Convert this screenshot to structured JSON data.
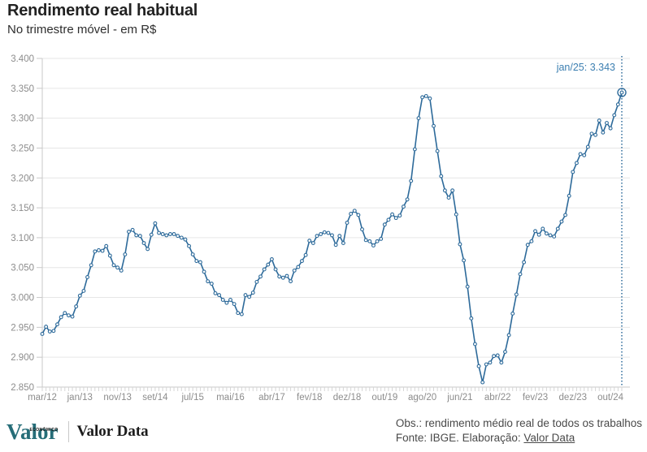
{
  "header": {
    "title": "Rendimento real habitual",
    "subtitle": "No trimestre móvel - em R$"
  },
  "chart_data": {
    "type": "line",
    "title": "Rendimento real habitual",
    "subtitle": "No trimestre móvel - em R$",
    "frequency": "monthly",
    "x_start": "mar/12",
    "x_end": "jan/25",
    "ylim": [
      2.85,
      3.4
    ],
    "grid": "horizontal-only",
    "y_ticks": [
      {
        "value": 2.85,
        "label": "2.850"
      },
      {
        "value": 2.9,
        "label": "2.900"
      },
      {
        "value": 2.95,
        "label": "2.950"
      },
      {
        "value": 3.0,
        "label": "3.000"
      },
      {
        "value": 3.05,
        "label": "3.050"
      },
      {
        "value": 3.1,
        "label": "3.100"
      },
      {
        "value": 3.15,
        "label": "3.150"
      },
      {
        "value": 3.2,
        "label": "3.200"
      },
      {
        "value": 3.25,
        "label": "3.250"
      },
      {
        "value": 3.3,
        "label": "3.300"
      },
      {
        "value": 3.35,
        "label": "3.350"
      },
      {
        "value": 3.4,
        "label": "3.400"
      }
    ],
    "x_ticks": [
      {
        "index": 0,
        "label": "mar/12"
      },
      {
        "index": 10,
        "label": "jan/13"
      },
      {
        "index": 20,
        "label": "nov/13"
      },
      {
        "index": 30,
        "label": "set/14"
      },
      {
        "index": 40,
        "label": "jul/15"
      },
      {
        "index": 50,
        "label": "mai/16"
      },
      {
        "index": 61,
        "label": "abr/17"
      },
      {
        "index": 71,
        "label": "fev/18"
      },
      {
        "index": 81,
        "label": "dez/18"
      },
      {
        "index": 91,
        "label": "out/19"
      },
      {
        "index": 101,
        "label": "ago/20"
      },
      {
        "index": 111,
        "label": "jun/21"
      },
      {
        "index": 121,
        "label": "abr/22"
      },
      {
        "index": 131,
        "label": "fev/23"
      },
      {
        "index": 141,
        "label": "dez/23"
      },
      {
        "index": 151,
        "label": "out/24"
      }
    ],
    "values": [
      2.939,
      2.951,
      2.943,
      2.944,
      2.955,
      2.967,
      2.974,
      2.97,
      2.968,
      2.985,
      3.003,
      3.011,
      3.034,
      3.054,
      3.077,
      3.079,
      3.078,
      3.086,
      3.07,
      3.054,
      3.05,
      3.045,
      3.072,
      3.11,
      3.113,
      3.104,
      3.103,
      3.091,
      3.081,
      3.105,
      3.124,
      3.108,
      3.106,
      3.104,
      3.106,
      3.106,
      3.103,
      3.1,
      3.097,
      3.086,
      3.072,
      3.061,
      3.059,
      3.043,
      3.027,
      3.023,
      3.007,
      3.004,
      2.996,
      2.991,
      2.996,
      2.989,
      2.974,
      2.972,
      3.004,
      3.001,
      3.008,
      3.026,
      3.035,
      3.047,
      3.055,
      3.064,
      3.047,
      3.035,
      3.033,
      3.036,
      3.027,
      3.045,
      3.051,
      3.061,
      3.071,
      3.095,
      3.091,
      3.103,
      3.106,
      3.109,
      3.108,
      3.104,
      3.088,
      3.103,
      3.091,
      3.125,
      3.14,
      3.145,
      3.138,
      3.114,
      3.096,
      3.094,
      3.087,
      3.094,
      3.098,
      3.122,
      3.13,
      3.139,
      3.133,
      3.137,
      3.152,
      3.164,
      3.195,
      3.248,
      3.3,
      3.335,
      3.337,
      3.333,
      3.287,
      3.245,
      3.203,
      3.179,
      3.167,
      3.179,
      3.139,
      3.089,
      3.062,
      3.018,
      2.965,
      2.922,
      2.885,
      2.858,
      2.888,
      2.891,
      2.902,
      2.903,
      2.891,
      2.909,
      2.937,
      2.973,
      3.005,
      3.039,
      3.059,
      3.088,
      3.094,
      3.111,
      3.105,
      3.115,
      3.107,
      3.104,
      3.102,
      3.115,
      3.127,
      3.138,
      3.17,
      3.21,
      3.225,
      3.24,
      3.238,
      3.252,
      3.274,
      3.272,
      3.296,
      3.276,
      3.292,
      3.283,
      3.305,
      3.323,
      3.343
    ],
    "annotation": {
      "text": "jan/25: 3.343",
      "index": 154,
      "value": 3.343
    },
    "colors": {
      "line": "#2d6a9a",
      "marker_fill": "#ffffff",
      "annotation": "#3c7fb1",
      "grid": "#e6e6e6",
      "axis": "#c9c9c9",
      "minor_tick": "#d6d6d6",
      "tick_label": "#8c8c8c"
    }
  },
  "footer": {
    "logo_primary": "Valor",
    "logo_secondary": "ECONÔMICO",
    "brand": "Valor Data",
    "obs": "Obs.: rendimento médio real de todos os trabalhos",
    "source_prefix": "Fonte: IBGE. Elaboração: ",
    "source_link": "Valor Data"
  }
}
